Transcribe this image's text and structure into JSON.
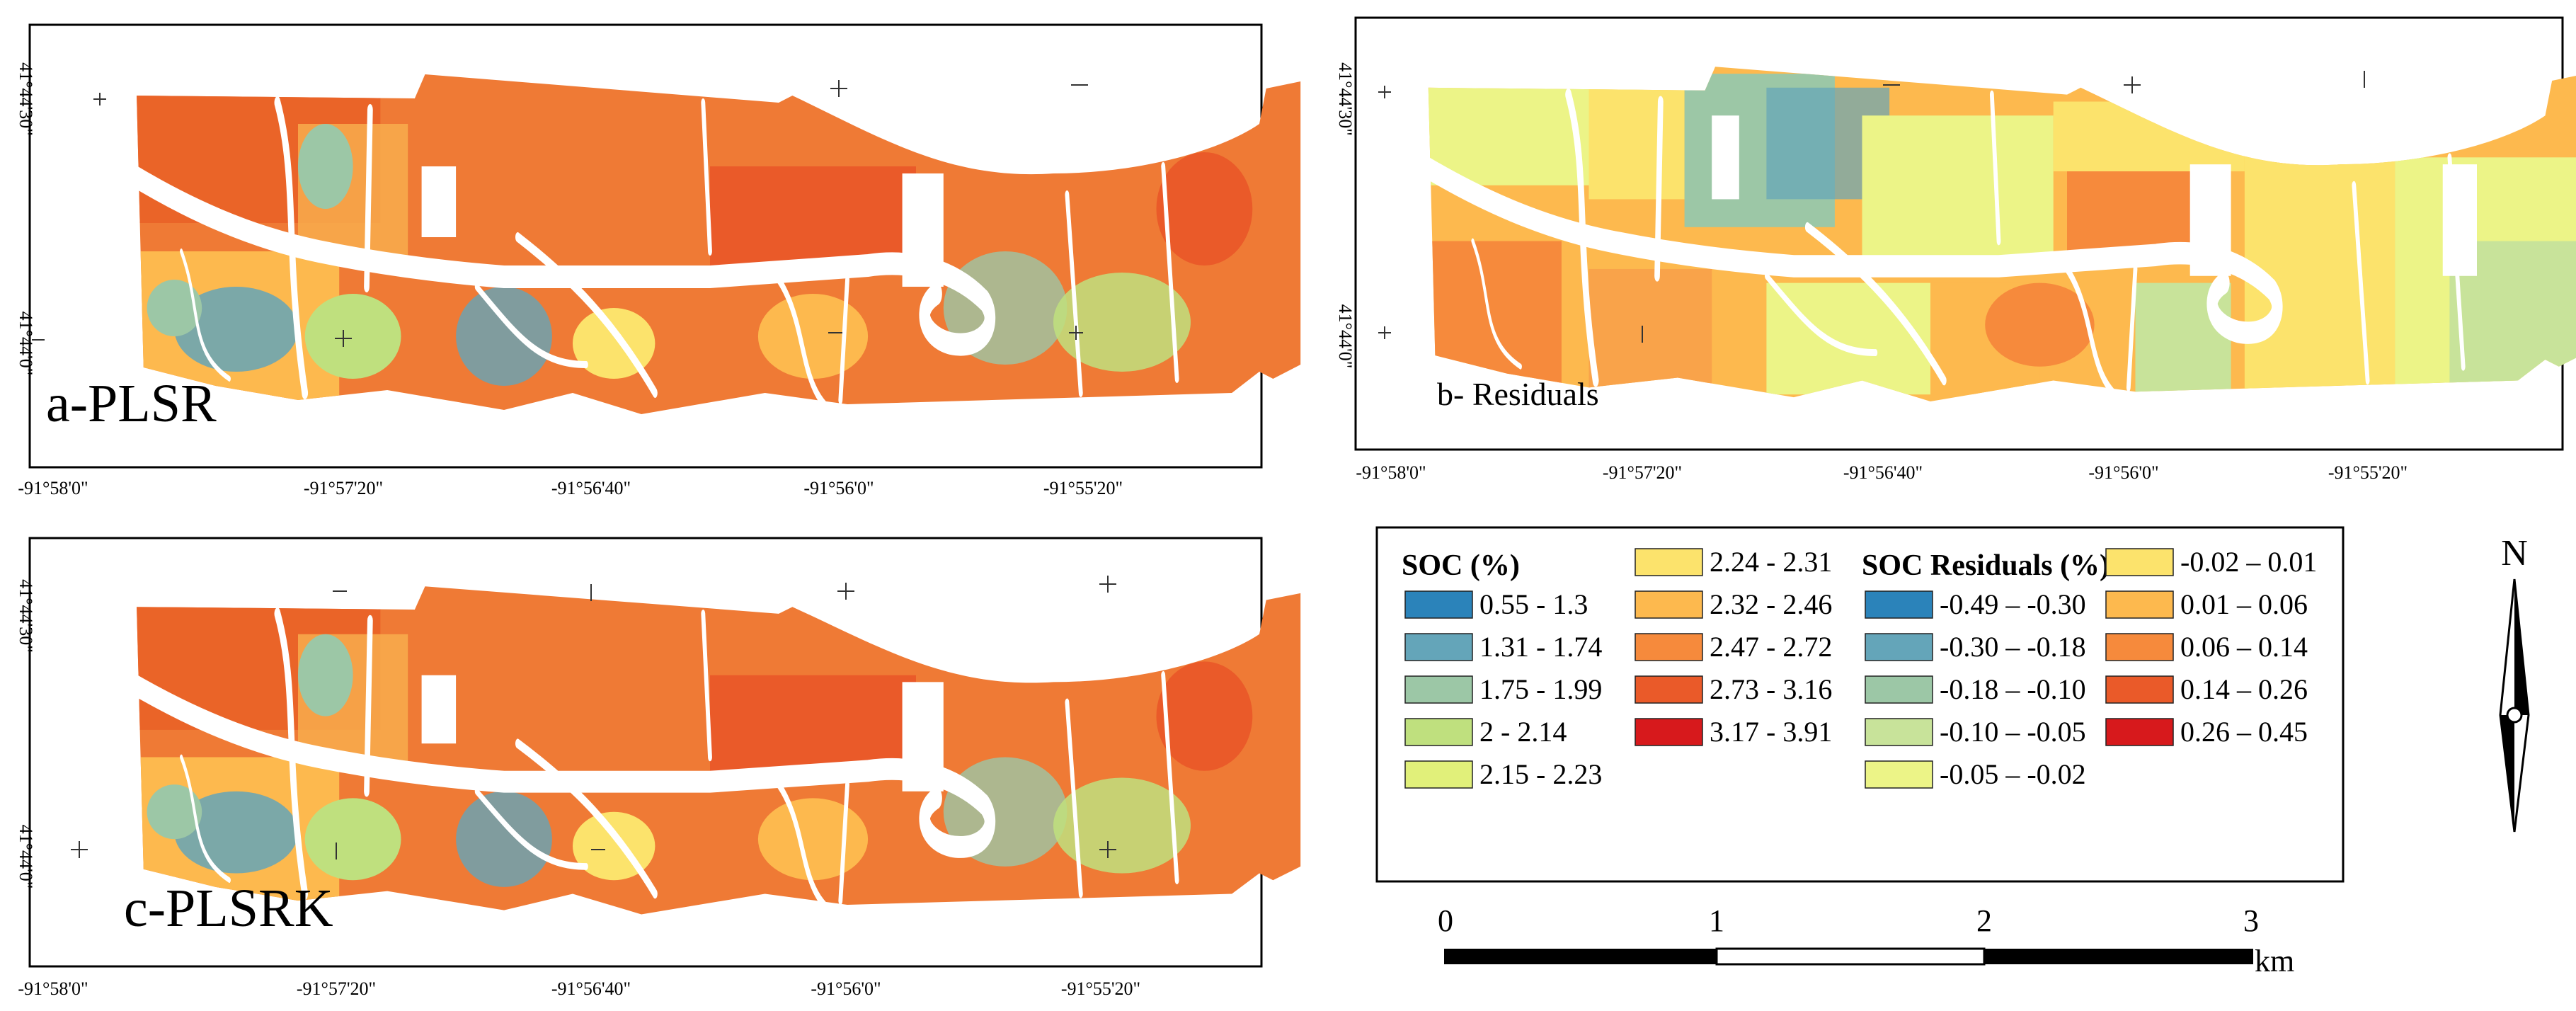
{
  "panels": {
    "a": {
      "title": "a-PLSR",
      "lon_labels": [
        "-91°58'0\"",
        "-91°57'20\"",
        "-91°56'40\"",
        "-91°56'0\"",
        "-91°55'20\""
      ],
      "lat_labels": [
        "41°44'30\"",
        "41°44'0\""
      ]
    },
    "b": {
      "title": "b- Residuals",
      "lon_labels": [
        "-91°58'0\"",
        "-91°57'20\"",
        "-91°56'40\"",
        "-91°56'0\"",
        "-91°55'20\""
      ],
      "lat_labels": [
        "41°44'30\"",
        "41°44'0\""
      ]
    },
    "c": {
      "title": "c-PLSRK",
      "lon_labels": [
        "-91°58'0\"",
        "-91°57'20\"",
        "-91°56'40\"",
        "-91°56'0\"",
        "-91°55'20\""
      ],
      "lat_labels": [
        "41°44'30\"",
        "41°44'0\""
      ]
    }
  },
  "legend": {
    "soc_heading": "SOC (%)",
    "soc_classes": [
      {
        "label": "0.55 - 1.3",
        "color": "#2b83ba"
      },
      {
        "label": "1.31 - 1.74",
        "color": "#64a5b9"
      },
      {
        "label": "1.75 - 1.99",
        "color": "#9cc7a6"
      },
      {
        "label": "2 - 2.14",
        "color": "#bfe07e"
      },
      {
        "label": "2.15 - 2.23",
        "color": "#e1f07a"
      },
      {
        "label": "2.24 - 2.31",
        "color": "#fce36c"
      },
      {
        "label": "2.32 - 2.46",
        "color": "#fdb94e"
      },
      {
        "label": "2.47 - 2.72",
        "color": "#f68a3c"
      },
      {
        "label": "2.73 - 3.16",
        "color": "#ea5a29"
      },
      {
        "label": "3.17 - 3.91",
        "color": "#d7191c"
      }
    ],
    "res_heading": "SOC Residuals (%)",
    "res_classes": [
      {
        "label": "-0.49 – -0.30",
        "color": "#2b83ba"
      },
      {
        "label": "-0.30 – -0.18",
        "color": "#64a5b9"
      },
      {
        "label": "-0.18 – -0.10",
        "color": "#9cc7a6"
      },
      {
        "label": "-0.10 – -0.05",
        "color": "#c8e39a"
      },
      {
        "label": "-0.05 – -0.02",
        "color": "#ecf487"
      },
      {
        "label": "-0.02 – 0.01",
        "color": "#fce36c"
      },
      {
        "label": "0.01 – 0.06",
        "color": "#fdb94e"
      },
      {
        "label": "0.06 – 0.14",
        "color": "#f68a3c"
      },
      {
        "label": "0.14 – 0.26",
        "color": "#ea5a29"
      },
      {
        "label": "0.26 – 0.45",
        "color": "#d7191c"
      }
    ]
  },
  "north_arrow": {
    "label": "N"
  },
  "scale_bar": {
    "labels": [
      "0",
      "1",
      "2",
      "3"
    ],
    "unit": "km"
  }
}
